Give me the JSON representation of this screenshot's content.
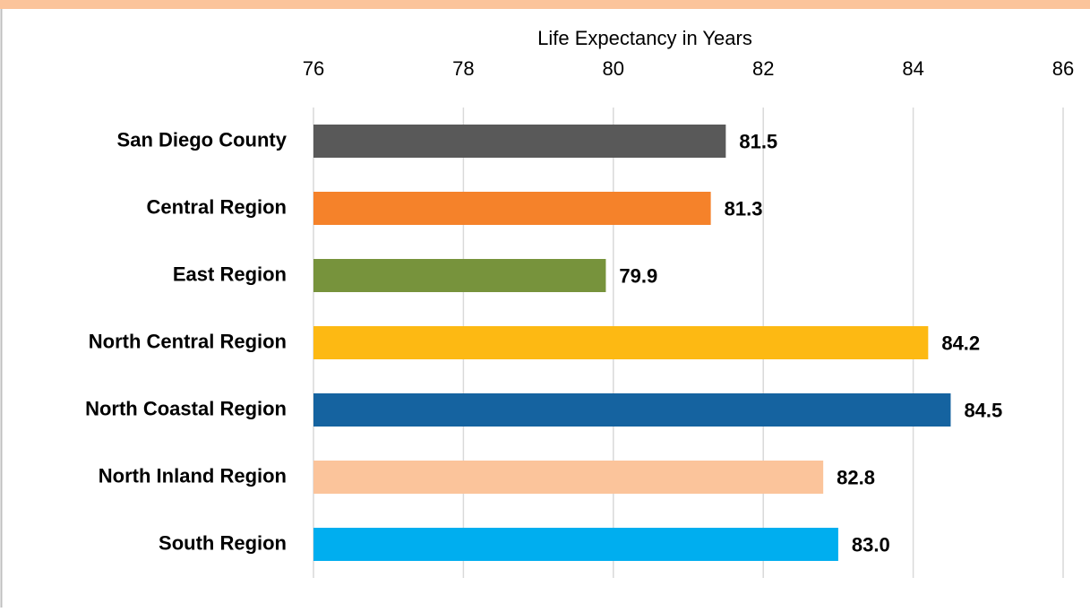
{
  "chart_data": {
    "type": "bar",
    "orientation": "horizontal",
    "xlabel": "Life Expectancy in Years",
    "categories": [
      "San Diego County",
      "Central Region",
      "East Region",
      "North Central Region",
      "North Coastal Region",
      "North Inland Region",
      "South Region"
    ],
    "values": [
      81.5,
      81.3,
      79.9,
      84.2,
      84.5,
      82.8,
      83.0
    ],
    "value_labels": [
      "81.5",
      "81.3",
      "79.9",
      "84.2",
      "84.5",
      "82.8",
      "83.0"
    ],
    "colors": [
      "#595959",
      "#f5822a",
      "#77933c",
      "#fdb913",
      "#1563a0",
      "#fbc49b",
      "#00aeef"
    ],
    "xlim": [
      76,
      86
    ],
    "xticks": [
      76,
      78,
      80,
      82,
      84,
      86
    ],
    "grid": true
  }
}
